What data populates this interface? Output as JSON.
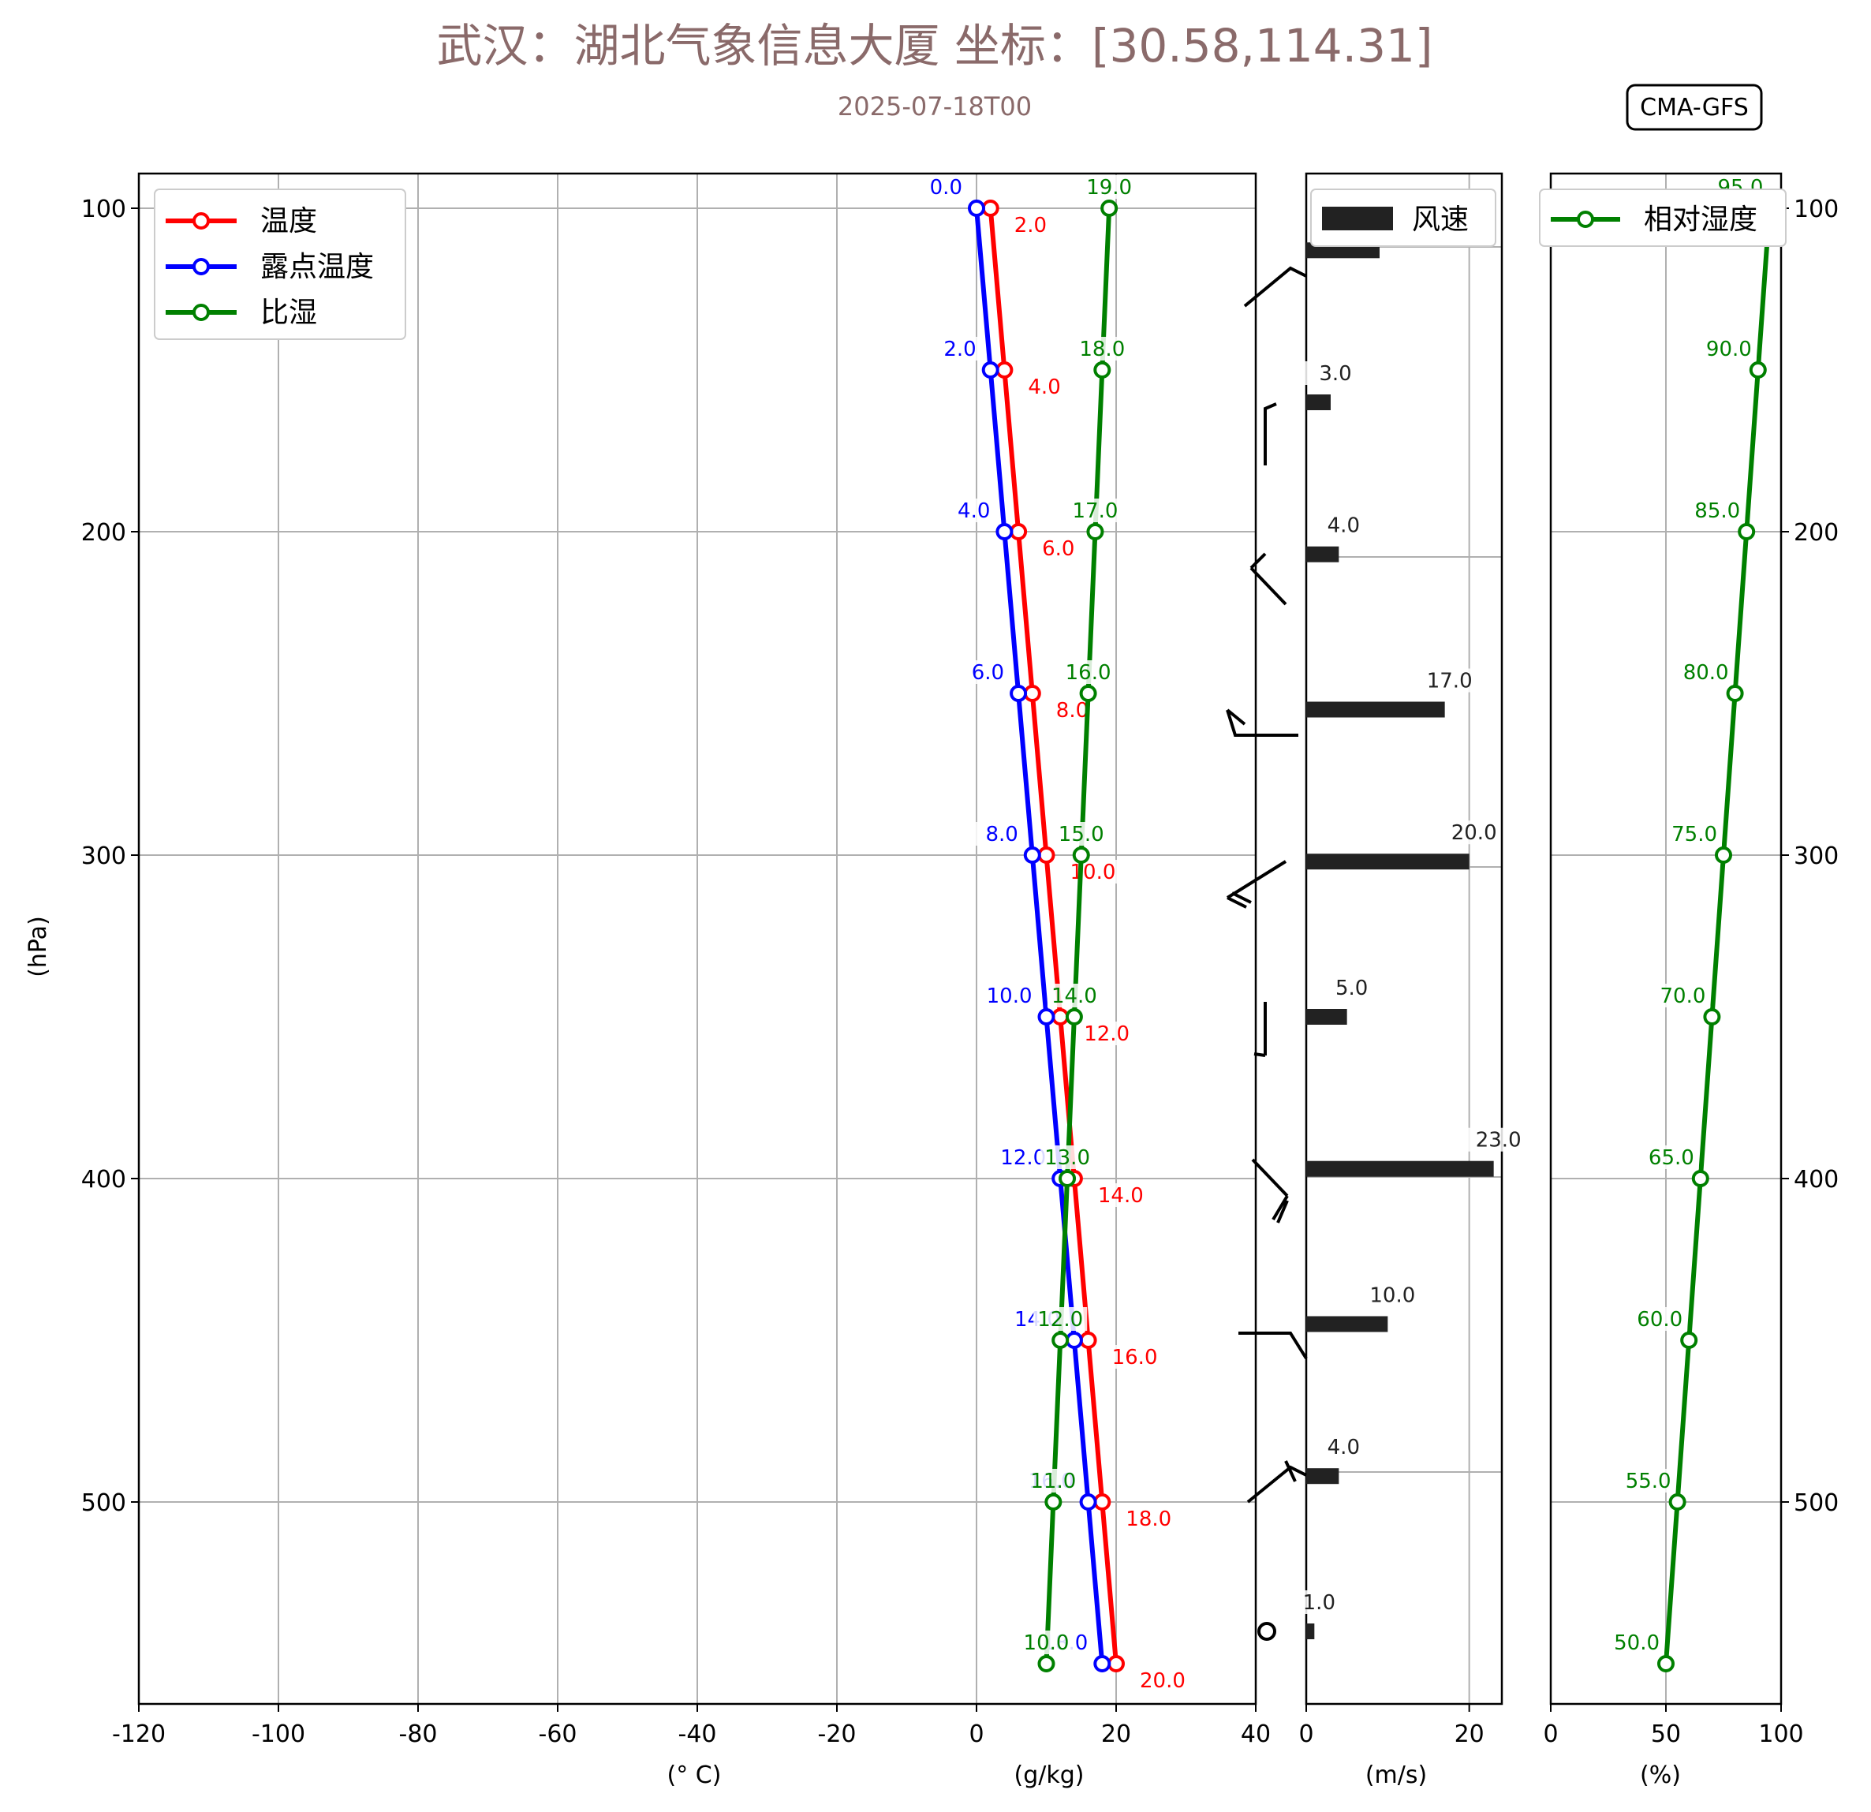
{
  "header": {
    "title": "武汉：湖北气象信息大厦 坐标：[30.58,114.31]",
    "subtitle": "2025-07-18T00",
    "model_badge": "CMA-GFS"
  },
  "colors": {
    "title": "#8a6a6a",
    "temperature": "#ff0000",
    "dewpoint": "#0000ff",
    "specific_humidity": "#008000",
    "wind": "#222222",
    "rh": "#008000",
    "grid": "#b0b0b0"
  },
  "chart_data": [
    {
      "type": "line",
      "name": "temperature-panel",
      "ylabel": "(hPa)",
      "xlabel_left": "(° C)",
      "xlabel_right": "(g/kg)",
      "xlim": [
        -120,
        40
      ],
      "ylim": [
        550,
        90
      ],
      "xticks": [
        "-120",
        "-100",
        "-80",
        "-60",
        "-40",
        "-20",
        "0",
        "20",
        "40"
      ],
      "yticks": [
        "100",
        "200",
        "300",
        "400",
        "500"
      ],
      "grid": true,
      "legend_position": "top-left",
      "pressure": [
        100,
        150,
        200,
        250,
        300,
        350,
        400,
        450,
        500,
        550
      ],
      "series": [
        {
          "name": "温度",
          "values": [
            2.0,
            4.0,
            6.0,
            8.0,
            10.0,
            12.0,
            14.0,
            16.0,
            18.0,
            20.0
          ],
          "labels": [
            "2.0",
            "4.0",
            "6.0",
            "8.0",
            "10.0",
            "12.0",
            "14.0",
            "16.0",
            "18.0",
            "20.0"
          ]
        },
        {
          "name": "露点温度",
          "values": [
            0.0,
            2.0,
            4.0,
            6.0,
            8.0,
            10.0,
            12.0,
            14.0,
            16.0,
            18.0
          ],
          "labels": [
            "0.0",
            "2.0",
            "4.0",
            "6.0",
            "8.0",
            "10.0",
            "12.0",
            "14.0",
            "16.0",
            "18.0"
          ]
        },
        {
          "name": "比湿",
          "values": [
            19.0,
            18.0,
            17.0,
            16.0,
            15.0,
            14.0,
            13.0,
            12.0,
            11.0,
            10.0
          ],
          "labels": [
            "19.0",
            "18.0",
            "17.0",
            "16.0",
            "15.0",
            "14.0",
            "13.0",
            "12.0",
            "11.0",
            "10.0"
          ]
        }
      ]
    },
    {
      "type": "bar",
      "name": "wind-panel",
      "xlabel": "(m/s)",
      "xlim": [
        0,
        24
      ],
      "xticks": [
        "0",
        "20"
      ],
      "grid": true,
      "legend_position": "top-right",
      "series": [
        {
          "name": "风速",
          "pressure": [
            113,
            160,
            207,
            255,
            302,
            350,
            397,
            445,
            492,
            540
          ],
          "values": [
            9.0,
            3.0,
            4.0,
            17.0,
            20.0,
            5.0,
            23.0,
            10.0,
            4.0,
            1.0
          ],
          "labels": [
            "",
            "3.0",
            "4.0",
            "17.0",
            "20.0",
            "5.0",
            "23.0",
            "10.0",
            "4.0",
            "1.0"
          ]
        }
      ]
    },
    {
      "type": "line",
      "name": "rh-panel",
      "xlabel": "(%)",
      "xlim": [
        0,
        100
      ],
      "xticks": [
        "0",
        "50",
        "100"
      ],
      "yticks": [
        "100",
        "200",
        "300",
        "400",
        "500"
      ],
      "grid": true,
      "legend_position": "top-left",
      "series": [
        {
          "name": "相对湿度",
          "pressure": [
            100,
            150,
            200,
            250,
            300,
            350,
            400,
            450,
            500,
            550
          ],
          "values": [
            95.0,
            90.0,
            85.0,
            80.0,
            75.0,
            70.0,
            65.0,
            60.0,
            55.0,
            50.0
          ],
          "labels": [
            "95.0",
            "90.0",
            "85.0",
            "80.0",
            "75.0",
            "70.0",
            "65.0",
            "60.0",
            "55.0",
            "50.0"
          ]
        }
      ]
    }
  ]
}
